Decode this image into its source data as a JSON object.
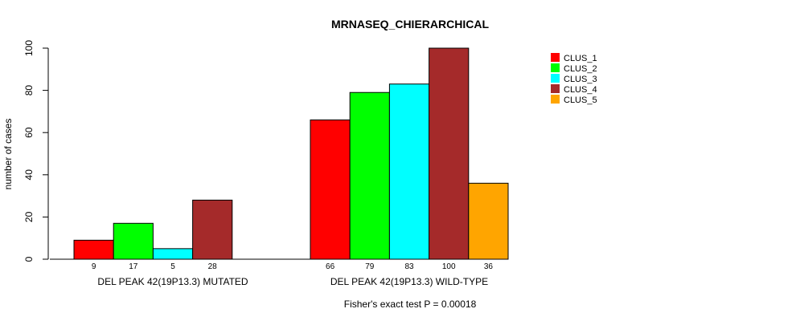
{
  "chart_data": {
    "type": "bar",
    "title": "MRNASEQ_CHIERARCHICAL",
    "ylabel": "number of cases",
    "ylim": [
      0,
      100
    ],
    "yticks": [
      "0",
      "20",
      "40",
      "60",
      "80",
      "100"
    ],
    "footnote": "Fisher's exact test P = 0.00018",
    "legend": {
      "position": "top-right",
      "entries": [
        {
          "name": "CLUS_1",
          "color": "#ff0000"
        },
        {
          "name": "CLUS_2",
          "color": "#00ff00"
        },
        {
          "name": "CLUS_3",
          "color": "#00ffff"
        },
        {
          "name": "CLUS_4",
          "color": "#a52a2a"
        },
        {
          "name": "CLUS_5",
          "color": "#ffa500"
        }
      ]
    },
    "groups": [
      {
        "label": "DEL PEAK 42(19P13.3) MUTATED",
        "values": [
          9,
          17,
          5,
          28,
          0
        ],
        "count_labels": [
          "9",
          "17",
          "5",
          "28",
          ""
        ]
      },
      {
        "label": "DEL PEAK 42(19P13.3) WILD-TYPE",
        "values": [
          66,
          79,
          83,
          100,
          36
        ],
        "count_labels": [
          "66",
          "79",
          "83",
          "100",
          "36"
        ]
      }
    ]
  }
}
